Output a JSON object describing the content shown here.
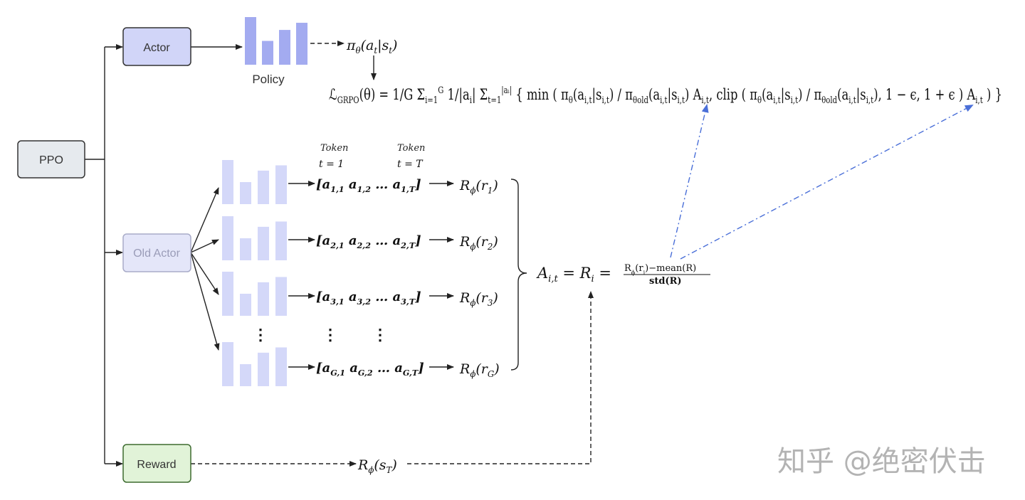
{
  "colors": {
    "ppo_fill": "#e6eaee",
    "actor_fill": "#d1d5f8",
    "old_actor_fill": "#e4e6f9",
    "reward_fill": "#e1f3d8",
    "reward_border": "#3d6b2f",
    "policy_bar": "#a3abf0",
    "old_bar": "#d4d8f9",
    "advantage_arrow": "#4a6fd8"
  },
  "nodes": {
    "ppo": "PPO",
    "actor": "Actor",
    "old_actor": "Old Actor",
    "reward": "Reward",
    "policy": "Policy"
  },
  "policy_bars": [
    1.0,
    0.5,
    0.73,
    0.88
  ],
  "sample_bars": [
    1.0,
    0.5,
    0.76,
    0.88
  ],
  "policy_output": [
    {
      "t": "π",
      "sub": "θ"
    },
    {
      "t": "(a",
      "sub": "t"
    },
    {
      "t": "|s",
      "sub": "t"
    },
    {
      "t": ")"
    }
  ],
  "token_labels": [
    {
      "label": "Token",
      "t": "t = 1"
    },
    {
      "label": "Token",
      "t": "t = T"
    }
  ],
  "loss_formula": [
    {
      "t": "ℒ",
      "sub": "GRPO"
    },
    {
      "t": "(θ) = "
    },
    {
      "t": "1/G"
    },
    {
      "t": " Σ",
      "sub": "i=1",
      "sup": "G"
    },
    {
      "t": " 1/|a",
      "sub": "i"
    },
    {
      "t": "|"
    },
    {
      "t": " Σ",
      "sub": "t=1",
      "sup": "|aᵢ|"
    },
    {
      "t": " { min ( "
    },
    {
      "t": "π",
      "sub": "θ"
    },
    {
      "t": "(a",
      "sub": "i,t"
    },
    {
      "t": "|s",
      "sub": "i,t"
    },
    {
      "t": ") / π",
      "sub": "θold"
    },
    {
      "t": "(a",
      "sub": "i,t"
    },
    {
      "t": "|s",
      "sub": "i,t"
    },
    {
      "t": ") A",
      "sub": "i,t"
    },
    {
      "t": ", clip ( "
    },
    {
      "t": "π",
      "sub": "θ"
    },
    {
      "t": "(a",
      "sub": "i,t"
    },
    {
      "t": "|s",
      "sub": "i,t"
    },
    {
      "t": ") / π",
      "sub": "θold"
    },
    {
      "t": "(a",
      "sub": "i,t"
    },
    {
      "t": "|s",
      "sub": "i,t"
    },
    {
      "t": "), 1 − ϵ, 1 + ϵ ) A",
      "sub": "i,t"
    },
    {
      "t": " ) }"
    }
  ],
  "rows": [
    {
      "tokens": [
        {
          "t": "[a",
          "sub": "1,1"
        },
        {
          "t": " a",
          "sub": "1,2"
        },
        {
          "t": " … a",
          "sub": "1,T"
        },
        {
          "t": "]"
        }
      ],
      "reward": [
        {
          "t": "R",
          "sub": "ϕ"
        },
        {
          "t": "(r",
          "sub": "1"
        },
        {
          "t": ")"
        }
      ]
    },
    {
      "tokens": [
        {
          "t": "[a",
          "sub": "2,1"
        },
        {
          "t": " a",
          "sub": "2,2"
        },
        {
          "t": " … a",
          "sub": "2,T"
        },
        {
          "t": "]"
        }
      ],
      "reward": [
        {
          "t": "R",
          "sub": "ϕ"
        },
        {
          "t": "(r",
          "sub": "2"
        },
        {
          "t": ")"
        }
      ]
    },
    {
      "tokens": [
        {
          "t": "[a",
          "sub": "3,1"
        },
        {
          "t": " a",
          "sub": "3,2"
        },
        {
          "t": " … a",
          "sub": "3,T"
        },
        {
          "t": "]"
        }
      ],
      "reward": [
        {
          "t": "R",
          "sub": "ϕ"
        },
        {
          "t": "(r",
          "sub": "3"
        },
        {
          "t": ")"
        }
      ]
    },
    {
      "tokens": [
        {
          "t": "[a",
          "sub": "G,1"
        },
        {
          "t": " a",
          "sub": "G,2"
        },
        {
          "t": " … a",
          "sub": "G,T"
        },
        {
          "t": "]"
        }
      ],
      "reward": [
        {
          "t": "R",
          "sub": "ϕ"
        },
        {
          "t": "(r",
          "sub": "G"
        },
        {
          "t": ")"
        }
      ]
    }
  ],
  "ellipsis": "⋮",
  "advantage_lhs": [
    {
      "t": "A",
      "sub": "i,t"
    },
    {
      "t": " = R",
      "sub": "i"
    },
    {
      "t": " ="
    }
  ],
  "advantage_num": [
    {
      "t": "R",
      "sub": "ϕ"
    },
    {
      "t": "(r",
      "sub": "i"
    },
    {
      "t": ")−mean(R)"
    }
  ],
  "advantage_den": [
    {
      "t": "std(R)"
    }
  ],
  "reward_output": [
    {
      "t": "R",
      "sub": "ϕ"
    },
    {
      "t": "(s",
      "sub": "T"
    },
    {
      "t": ")"
    }
  ],
  "watermark": "知乎 @绝密伏击"
}
